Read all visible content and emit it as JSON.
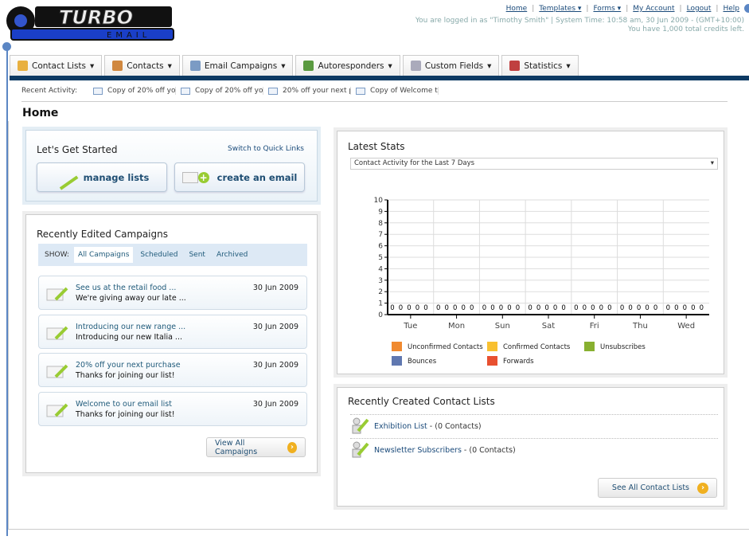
{
  "logo": {
    "text": "TURBO",
    "sub": "EMAIL"
  },
  "toplinks": [
    "Home",
    "Templates ▾",
    "Forms ▾",
    "My Account",
    "Logout",
    "Help"
  ],
  "login_info": "You are logged in as \"Timothy Smith\" | System Time: 10:58 am, 30 Jun 2009 - (GMT+10:00)",
  "credits": "You have 1,000 total credits left.",
  "tabs": [
    {
      "label": "Contact Lists",
      "icon": "contact-lists-icon",
      "color": "#e8b040"
    },
    {
      "label": "Contacts",
      "icon": "contacts-icon",
      "color": "#d08840"
    },
    {
      "label": "Email Campaigns",
      "icon": "envelope-icon",
      "color": "#7b9bc4"
    },
    {
      "label": "Autoresponders",
      "icon": "autoresponder-icon",
      "color": "#5a9a40"
    },
    {
      "label": "Custom Fields",
      "icon": "custom-fields-icon",
      "color": "#aab"
    },
    {
      "label": "Statistics",
      "icon": "statistics-icon",
      "color": "#c04040"
    }
  ],
  "recent": {
    "label": "Recent Activity:",
    "items": [
      "Copy of 20% off yo",
      "Copy of 20% off yo",
      "20% off your next p",
      "Copy of Welcome to"
    ]
  },
  "page_title": "Home",
  "get_started": {
    "title": "Let's Get Started",
    "quick_links": "Switch to Quick Links",
    "manage_lists": "manage lists",
    "create_email": "create an email"
  },
  "campaigns": {
    "title": "Recently Edited Campaigns",
    "show_label": "SHOW:",
    "filters": [
      "All Campaigns",
      "Scheduled",
      "Sent",
      "Archived"
    ],
    "active_filter": "All Campaigns",
    "items": [
      {
        "title": "See us at the retail food ...",
        "subject": "We're giving away our late ...",
        "date": "30 Jun 2009"
      },
      {
        "title": "Introducing our new range ...",
        "subject": "Introducing our new Italia ...",
        "date": "30 Jun 2009"
      },
      {
        "title": "20% off your next purchase",
        "subject": "Thanks for joining our list!",
        "date": "30 Jun 2009"
      },
      {
        "title": "Welcome to our email list",
        "subject": "Thanks for joining our list!",
        "date": "30 Jun 2009"
      }
    ],
    "view_all": "View All Campaigns"
  },
  "stats": {
    "title": "Latest Stats",
    "select": "Contact Activity for the Last 7 Days"
  },
  "chart_data": {
    "type": "bar",
    "categories": [
      "Tue",
      "Mon",
      "Sun",
      "Sat",
      "Fri",
      "Thu",
      "Wed"
    ],
    "series": [
      {
        "name": "Unconfirmed Contacts",
        "color": "#f08a30",
        "values": [
          0,
          0,
          0,
          0,
          0,
          0,
          0
        ]
      },
      {
        "name": "Confirmed Contacts",
        "color": "#f8c030",
        "values": [
          0,
          0,
          0,
          0,
          0,
          0,
          0
        ]
      },
      {
        "name": "Unsubscribes",
        "color": "#88b030",
        "values": [
          0,
          0,
          0,
          0,
          0,
          0,
          0
        ]
      },
      {
        "name": "Bounces",
        "color": "#6078b0",
        "values": [
          0,
          0,
          0,
          0,
          0,
          0,
          0
        ]
      },
      {
        "name": "Forwards",
        "color": "#e85030",
        "values": [
          0,
          0,
          0,
          0,
          0,
          0,
          0
        ]
      }
    ],
    "ylim": [
      0,
      10
    ],
    "yticks": [
      0,
      1,
      2,
      3,
      4,
      5,
      6,
      7,
      8,
      9,
      10
    ],
    "grid": true,
    "legend": "bottom"
  },
  "contact_lists": {
    "title": "Recently Created Contact Lists",
    "items": [
      {
        "name": "Exhibition List",
        "count": " - (0 Contacts)"
      },
      {
        "name": "Newsletter Subscribers",
        "count": " - (0 Contacts)"
      }
    ],
    "see_all": "See All Contact Lists"
  }
}
